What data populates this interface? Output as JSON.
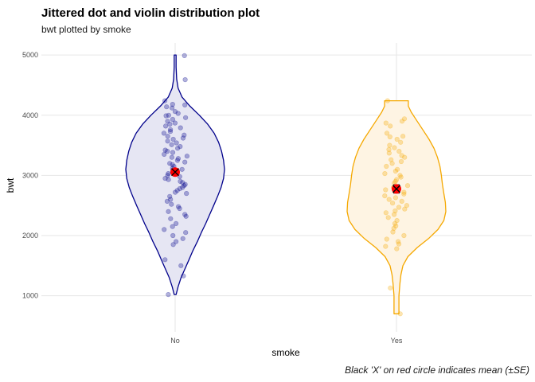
{
  "chart_data": {
    "type": "violin",
    "title": "Jittered dot and violin distribution plot",
    "subtitle": "bwt plotted by smoke",
    "xlabel": "smoke",
    "ylabel": "bwt",
    "caption": "Black 'X' on red circle indicates mean (±SE)",
    "ylim": [
      400,
      5200
    ],
    "yticks": [
      1000,
      2000,
      3000,
      4000,
      5000
    ],
    "grid": true,
    "categories": [
      "No",
      "Yes"
    ],
    "series": [
      {
        "category": "No",
        "color": "#00008b",
        "fill": "#e6e6f3",
        "mean": 3055,
        "se": 55,
        "violin_range": [
          1020,
          5000
        ],
        "density": [
          [
            1020,
            0.02
          ],
          [
            1150,
            0.06
          ],
          [
            1300,
            0.12
          ],
          [
            1450,
            0.2
          ],
          [
            1600,
            0.28
          ],
          [
            1750,
            0.36
          ],
          [
            1900,
            0.45
          ],
          [
            2050,
            0.53
          ],
          [
            2200,
            0.62
          ],
          [
            2350,
            0.7
          ],
          [
            2500,
            0.78
          ],
          [
            2650,
            0.86
          ],
          [
            2800,
            0.93
          ],
          [
            2950,
            0.98
          ],
          [
            3100,
            1.0
          ],
          [
            3250,
            0.98
          ],
          [
            3400,
            0.94
          ],
          [
            3550,
            0.88
          ],
          [
            3700,
            0.79
          ],
          [
            3850,
            0.66
          ],
          [
            4000,
            0.49
          ],
          [
            4150,
            0.3
          ],
          [
            4300,
            0.14
          ],
          [
            4450,
            0.06
          ],
          [
            4600,
            0.03
          ],
          [
            4800,
            0.02
          ],
          [
            5000,
            0.02
          ]
        ],
        "points": [
          4990,
          4590,
          4240,
          4180,
          4170,
          4140,
          4120,
          4060,
          4030,
          4000,
          3990,
          3960,
          3930,
          3900,
          3870,
          3850,
          3820,
          3790,
          3760,
          3730,
          3700,
          3670,
          3650,
          3620,
          3600,
          3570,
          3540,
          3510,
          3480,
          3450,
          3420,
          3400,
          3380,
          3350,
          3320,
          3300,
          3280,
          3250,
          3220,
          3200,
          3180,
          3150,
          3120,
          3100,
          3080,
          3050,
          3030,
          3000,
          2980,
          2950,
          2930,
          2900,
          2880,
          2850,
          2830,
          2800,
          2780,
          2750,
          2720,
          2700,
          2650,
          2600,
          2570,
          2520,
          2480,
          2450,
          2400,
          2350,
          2320,
          2280,
          2200,
          2150,
          2100,
          2050,
          2000,
          1950,
          1900,
          1850,
          1600,
          1500,
          1330,
          1020
        ]
      },
      {
        "category": "Yes",
        "color": "#f5a800",
        "fill": "#fef4e3",
        "mean": 2775,
        "se": 70,
        "violin_range": [
          700,
          4240
        ],
        "density": [
          [
            700,
            0.05
          ],
          [
            850,
            0.05
          ],
          [
            1000,
            0.05
          ],
          [
            1100,
            0.06
          ],
          [
            1200,
            0.07
          ],
          [
            1350,
            0.09
          ],
          [
            1500,
            0.13
          ],
          [
            1650,
            0.23
          ],
          [
            1800,
            0.42
          ],
          [
            1950,
            0.65
          ],
          [
            2100,
            0.84
          ],
          [
            2250,
            0.96
          ],
          [
            2400,
            1.0
          ],
          [
            2550,
            0.99
          ],
          [
            2700,
            0.96
          ],
          [
            2850,
            0.93
          ],
          [
            3000,
            0.91
          ],
          [
            3150,
            0.88
          ],
          [
            3300,
            0.83
          ],
          [
            3450,
            0.76
          ],
          [
            3600,
            0.66
          ],
          [
            3750,
            0.54
          ],
          [
            3900,
            0.42
          ],
          [
            4050,
            0.3
          ],
          [
            4150,
            0.24
          ],
          [
            4240,
            0.24
          ]
        ],
        "points": [
          4240,
          3940,
          3900,
          3870,
          3820,
          3700,
          3650,
          3640,
          3600,
          3550,
          3500,
          3460,
          3430,
          3400,
          3370,
          3330,
          3300,
          3260,
          3230,
          3200,
          3150,
          3100,
          3070,
          3030,
          3000,
          2970,
          2930,
          2900,
          2870,
          2830,
          2800,
          2760,
          2720,
          2690,
          2660,
          2630,
          2600,
          2570,
          2540,
          2500,
          2470,
          2440,
          2410,
          2380,
          2350,
          2300,
          2250,
          2200,
          2160,
          2120,
          2060,
          2000,
          1940,
          1900,
          1860,
          1820,
          1780,
          1130,
          700
        ]
      }
    ]
  }
}
